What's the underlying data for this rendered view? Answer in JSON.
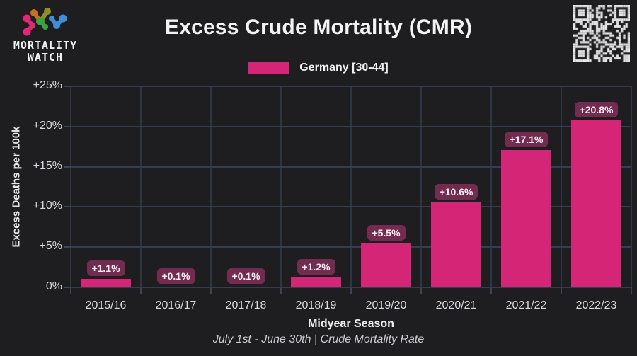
{
  "logo": {
    "line1": "MORTALITY",
    "line2": "WATCH"
  },
  "header": {
    "title": "Excess Crude Mortality (CMR)"
  },
  "legend": {
    "label": "Germany [30-44]"
  },
  "chart_data": {
    "type": "bar",
    "title": "Excess Crude Mortality (CMR)",
    "categories": [
      "2015/16",
      "2016/17",
      "2017/18",
      "2018/19",
      "2019/20",
      "2020/21",
      "2021/22",
      "2022/23"
    ],
    "series": [
      {
        "name": "Germany [30-44]",
        "values": [
          1.1,
          0.1,
          0.1,
          1.2,
          5.5,
          10.6,
          17.1,
          20.8
        ]
      }
    ],
    "bar_labels": [
      "+1.1%",
      "+0.1%",
      "+0.1%",
      "+1.2%",
      "+5.5%",
      "+10.6%",
      "+17.1%",
      "+20.8%"
    ],
    "xlabel": "Midyear Season",
    "ylabel": "Excess Deaths per 100k",
    "ylim": [
      0,
      25
    ],
    "y_tick_values": [
      0,
      5,
      10,
      15,
      20,
      25
    ],
    "y_tick_labels": [
      "0%",
      "+5%",
      "+10%",
      "+15%",
      "+20%",
      "+25%"
    ],
    "grid": true,
    "legend_position": "top",
    "colors": {
      "bar": "#d42576",
      "badge": "#742b50",
      "background": "#1e1e21",
      "gridline": "#353c50",
      "axis_text": "#dbdbdf"
    }
  },
  "footer": {
    "note": "July 1st - June 30th | Crude Mortality Rate"
  }
}
